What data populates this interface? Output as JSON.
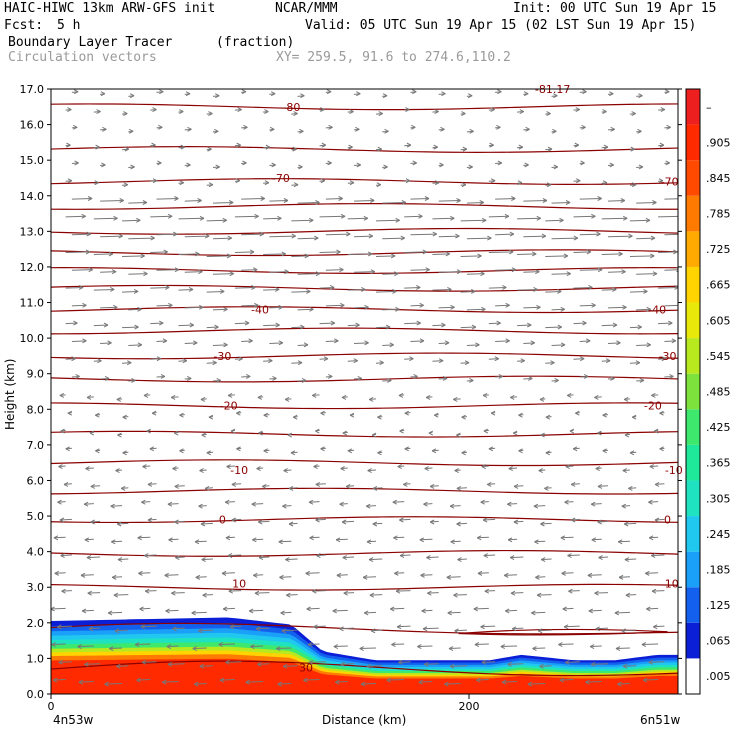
{
  "header": {
    "model": "HAIC-HIWC 13km ARW-GFS init",
    "center": "NCAR/MMM",
    "init": "Init: 00 UTC Sun 19 Apr 15",
    "fcst_label": "Fcst:",
    "fcst_value": "5 h",
    "valid": "Valid: 05 UTC Sun 19 Apr 15 (02 LST Sun 19 Apr 15)",
    "field": "Boundary Layer Tracer",
    "field_units": "(fraction)",
    "vectors": "Circulation vectors",
    "xy": "XY= 259.5, 91.6 to 274.6,110.2"
  },
  "colors": {
    "frame": "#000000",
    "contour": "#8b0000",
    "vector": "#777777",
    "colorbar": [
      "#ffffff",
      "#0a1fd6",
      "#1460ee",
      "#1aa0f8",
      "#20c8f0",
      "#1ee2c0",
      "#20e89a",
      "#3de86d",
      "#7de23c",
      "#b8e81e",
      "#e8e80a",
      "#ffd400",
      "#ffaa00",
      "#ff7a00",
      "#ff4a00",
      "#ff2a00",
      "#ee1f1f"
    ]
  },
  "chart_data": {
    "type": "contour",
    "title": "Boundary Layer Tracer (fraction)",
    "ylabel": "Height (km)",
    "xlabel": "Distance (km)",
    "ylim": [
      0,
      17
    ],
    "xlim": [
      0,
      300
    ],
    "y_ticks": [
      "0.0",
      "1.0",
      "2.0",
      "3.0",
      "4.0",
      "5.0",
      "6.0",
      "7.0",
      "8.0",
      "9.0",
      "10.0",
      "11.0",
      "12.0",
      "13.0",
      "14.0",
      "15.0",
      "16.0",
      "17.0"
    ],
    "x_ticks": [
      {
        "value": 0,
        "label": "0"
      },
      {
        "value": 200,
        "label": "200"
      }
    ],
    "x_end_labels": {
      "left": "4n53w",
      "right": "6n51w"
    },
    "colorbar_labels": [
      ".005",
      ".065",
      ".125",
      ".185",
      ".245",
      ".305",
      ".365",
      ".425",
      ".485",
      ".545",
      ".605",
      ".665",
      ".725",
      ".785",
      ".845",
      ".905",
      "–"
    ],
    "temperature_contour_labels": [
      {
        "text": "-80",
        "x": 115,
        "y": 16.5
      },
      {
        "text": "-81.17",
        "x": 240,
        "y": 17.0
      },
      {
        "text": "-70",
        "x": 110,
        "y": 14.5
      },
      {
        "text": "-70",
        "x": 296,
        "y": 14.4
      },
      {
        "text": "-40",
        "x": 100,
        "y": 10.8
      },
      {
        "text": "-40",
        "x": 290,
        "y": 10.8
      },
      {
        "text": "-30",
        "x": 82,
        "y": 9.5
      },
      {
        "text": "-30",
        "x": 295,
        "y": 9.5
      },
      {
        "text": "-20",
        "x": 85,
        "y": 8.1
      },
      {
        "text": "-20",
        "x": 288,
        "y": 8.1
      },
      {
        "text": "-10",
        "x": 90,
        "y": 6.3
      },
      {
        "text": "-10",
        "x": 298,
        "y": 6.3
      },
      {
        "text": "0",
        "x": 82,
        "y": 4.9
      },
      {
        "text": "0",
        "x": 295,
        "y": 4.9
      },
      {
        "text": "10",
        "x": 90,
        "y": 3.1
      },
      {
        "text": "10",
        "x": 297,
        "y": 3.1
      },
      {
        "text": "30",
        "x": 122,
        "y": 0.75
      }
    ],
    "boundary_layer_top_km": [
      {
        "x": 0,
        "y": 2.05
      },
      {
        "x": 40,
        "y": 2.1
      },
      {
        "x": 85,
        "y": 2.15
      },
      {
        "x": 115,
        "y": 1.95
      },
      {
        "x": 130,
        "y": 1.2
      },
      {
        "x": 155,
        "y": 0.95
      },
      {
        "x": 180,
        "y": 0.95
      },
      {
        "x": 210,
        "y": 0.95
      },
      {
        "x": 225,
        "y": 1.1
      },
      {
        "x": 250,
        "y": 0.95
      },
      {
        "x": 270,
        "y": 0.95
      },
      {
        "x": 290,
        "y": 1.1
      },
      {
        "x": 300,
        "y": 1.1
      }
    ]
  }
}
